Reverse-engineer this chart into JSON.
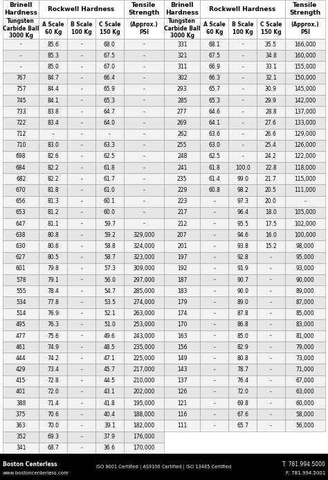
{
  "footer_left_bold": "Boston Centerless",
  "footer_left_normal": "www.bostoncenterless.com",
  "footer_center": "ISO 9001 Certified | AS9100 Certified | ISO 13485 Certified",
  "footer_right_line1": "T: 781.994.5000",
  "footer_right_line2": "F: 781.994.5001",
  "rows_left": [
    [
      "-",
      "85.6",
      "-",
      "68.0",
      "-"
    ],
    [
      "-",
      "85.3",
      "-",
      "67.5",
      "-"
    ],
    [
      "-",
      "85.0",
      "-",
      "67.0",
      "-"
    ],
    [
      "767",
      "84.7",
      "-",
      "66.4",
      "-"
    ],
    [
      "757",
      "84.4",
      "-",
      "65.9",
      "-"
    ],
    [
      "745",
      "84.1",
      "-",
      "65.3",
      "-"
    ],
    [
      "733",
      "83.8",
      "-",
      "64.7",
      "-"
    ],
    [
      "722",
      "83.4",
      "-",
      "64.0",
      "-"
    ],
    [
      "712",
      "-",
      "-",
      "-",
      "-"
    ],
    [
      "710",
      "83.0",
      "-",
      "63.3",
      "-"
    ],
    [
      "698",
      "82.6",
      "-",
      "62.5",
      "-"
    ],
    [
      "684",
      "82.2",
      "-",
      "61.8",
      "-"
    ],
    [
      "682",
      "82.2",
      "-",
      "61.7",
      "-"
    ],
    [
      "670",
      "81.8",
      "-",
      "61.0",
      "-"
    ],
    [
      "656",
      "81.3",
      "-",
      "60.1",
      "-"
    ],
    [
      "653",
      "81.2",
      "-",
      "60.0",
      "-"
    ],
    [
      "647",
      "81.1",
      "-",
      "59.7",
      "-"
    ],
    [
      "638",
      "80.8",
      "-",
      "59.2",
      "329,000"
    ],
    [
      "630",
      "80.6",
      "-",
      "58.8",
      "324,000"
    ],
    [
      "627",
      "80.5",
      "-",
      "58.7",
      "323,000"
    ],
    [
      "601",
      "79.8",
      "-",
      "57.3",
      "309,000"
    ],
    [
      "578",
      "79.1",
      "-",
      "56.0",
      "297,000"
    ],
    [
      "555",
      "78.4",
      "-",
      "54.7",
      "285,000"
    ],
    [
      "534",
      "77.8",
      "-",
      "53.5",
      "274,000"
    ],
    [
      "514",
      "76.9",
      "-",
      "52.1",
      "263,000"
    ],
    [
      "495",
      "76.3",
      "-",
      "51.0",
      "253,000"
    ],
    [
      "477",
      "75.6",
      "-",
      "49.6",
      "243,000"
    ],
    [
      "461",
      "74.9",
      "-",
      "48.5",
      "235,000"
    ],
    [
      "444",
      "74.2",
      "-",
      "47.1",
      "225,000"
    ],
    [
      "429",
      "73.4",
      "-",
      "45.7",
      "217,000"
    ],
    [
      "415",
      "72.8",
      "-",
      "44.5",
      "210,000"
    ],
    [
      "401",
      "72.0",
      "-",
      "43.1",
      "202,000"
    ],
    [
      "388",
      "71.4",
      "-",
      "41.8",
      "195,000"
    ],
    [
      "375",
      "70.6",
      "-",
      "40.4",
      "188,000"
    ],
    [
      "363",
      "70.0",
      "-",
      "39.1",
      "182,000"
    ],
    [
      "352",
      "69.3",
      "-",
      "37.9",
      "176,000"
    ],
    [
      "341",
      "68.7",
      "-",
      "36.6",
      "170,000"
    ]
  ],
  "rows_right": [
    [
      "331",
      "68.1",
      "-",
      "35.5",
      "166,000"
    ],
    [
      "321",
      "67.5",
      "-",
      "34.8",
      "160,000"
    ],
    [
      "311",
      "66.9",
      "-",
      "33.1",
      "155,000"
    ],
    [
      "302",
      "66.3",
      "-",
      "32.1",
      "150,000"
    ],
    [
      "293",
      "65.7",
      "-",
      "30.9",
      "145,000"
    ],
    [
      "285",
      "65.3",
      "-",
      "29.9",
      "142,000"
    ],
    [
      "277",
      "64.6",
      "-",
      "28.8",
      "137,000"
    ],
    [
      "269",
      "64.1",
      "-",
      "27.6",
      "133,000"
    ],
    [
      "262",
      "63.6",
      "-",
      "26.6",
      "129,000"
    ],
    [
      "255",
      "63.0",
      "-",
      "25.4",
      "126,000"
    ],
    [
      "248",
      "62.5",
      "-",
      "24.2",
      "122,000"
    ],
    [
      "241",
      "61.8",
      "100.0",
      "22.8",
      "118,000"
    ],
    [
      "235",
      "61.4",
      "99.0",
      "21.7",
      "115,000"
    ],
    [
      "229",
      "60.8",
      "98.2",
      "20.5",
      "111,000"
    ],
    [
      "223",
      "-",
      "97.3",
      "20.0",
      "-"
    ],
    [
      "217",
      "-",
      "96.4",
      "18.0",
      "105,000"
    ],
    [
      "212",
      "-",
      "95.5",
      "17.5",
      "102,000"
    ],
    [
      "207",
      "-",
      "94.6",
      "16.0",
      "100,000"
    ],
    [
      "201",
      "-",
      "93.8",
      "15.2",
      "98,000"
    ],
    [
      "197",
      "-",
      "92.8",
      "-",
      "95,000"
    ],
    [
      "192",
      "-",
      "91.9",
      "-",
      "93,000"
    ],
    [
      "187",
      "-",
      "90.7",
      "-",
      "90,000"
    ],
    [
      "183",
      "-",
      "90.0",
      "-",
      "89,000"
    ],
    [
      "179",
      "-",
      "89.0",
      "-",
      "87,000"
    ],
    [
      "174",
      "-",
      "87.8",
      "-",
      "85,000"
    ],
    [
      "170",
      "-",
      "86.8",
      "-",
      "83,000"
    ],
    [
      "163",
      "-",
      "85.0",
      "-",
      "81,000"
    ],
    [
      "156",
      "-",
      "82.9",
      "-",
      "79,000"
    ],
    [
      "149",
      "-",
      "80.8",
      "-",
      "73,000"
    ],
    [
      "143",
      "-",
      "78.7",
      "-",
      "71,000"
    ],
    [
      "137",
      "-",
      "76.4",
      "-",
      "67,000"
    ],
    [
      "126",
      "-",
      "72.0",
      "-",
      "63,000"
    ],
    [
      "121",
      "-",
      "69.8",
      "-",
      "60,000"
    ],
    [
      "116",
      "-",
      "67.6",
      "-",
      "58,000"
    ],
    [
      "111",
      "-",
      "65.7",
      "-",
      "56,000"
    ]
  ],
  "bg_color": "#ffffff",
  "header_bg": "#ffffff",
  "row_bg_odd": "#e6e6e6",
  "row_bg_even": "#f2f2f2",
  "footer_bg": "#000000",
  "footer_text_color": "#ffffff",
  "border_color": "#999999",
  "text_color": "#000000"
}
